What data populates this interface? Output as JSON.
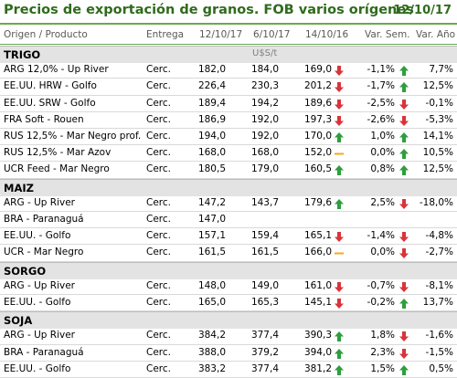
{
  "title": "Precios de exportación de granos. FOB varios orígenes",
  "date": "12/10/17",
  "columns": {
    "product": "Origen / Producto",
    "delivery": "Entrega",
    "d1": "12/10/17",
    "d2": "6/10/17",
    "d3": "14/10/16",
    "var_week": "Var. Sem.",
    "var_year": "Var. Año"
  },
  "units": "U$S/t",
  "colors": {
    "title": "#2f6b1c",
    "up": "#2e9e3e",
    "down": "#d9343b",
    "flat": "#f2a91b",
    "section_bg": "#e3e3e3"
  },
  "sections": [
    {
      "name": "TRIGO",
      "rows": [
        {
          "product": "ARG 12,0% - Up River",
          "delivery": "Cerc.",
          "d1": "182,0",
          "d2": "184,0",
          "d3": "169,0",
          "d3_icon": "down",
          "var_week": "-1,1%",
          "week_icon": "up",
          "var_year": "7,7%"
        },
        {
          "product": "EE.UU. HRW - Golfo",
          "delivery": "Cerc.",
          "d1": "226,4",
          "d2": "230,3",
          "d3": "201,2",
          "d3_icon": "down",
          "var_week": "-1,7%",
          "week_icon": "up",
          "var_year": "12,5%"
        },
        {
          "product": "EE.UU. SRW - Golfo",
          "delivery": "Cerc.",
          "d1": "189,4",
          "d2": "194,2",
          "d3": "189,6",
          "d3_icon": "down",
          "var_week": "-2,5%",
          "week_icon": "down",
          "var_year": "-0,1%"
        },
        {
          "product": "FRA Soft - Rouen",
          "delivery": "Cerc.",
          "d1": "186,9",
          "d2": "192,0",
          "d3": "197,3",
          "d3_icon": "down",
          "var_week": "-2,6%",
          "week_icon": "down",
          "var_year": "-5,3%"
        },
        {
          "product": "RUS 12,5% - Mar Negro prof.",
          "delivery": "Cerc.",
          "d1": "194,0",
          "d2": "192,0",
          "d3": "170,0",
          "d3_icon": "up",
          "var_week": "1,0%",
          "week_icon": "up",
          "var_year": "14,1%"
        },
        {
          "product": "RUS 12,5% - Mar Azov",
          "delivery": "Cerc.",
          "d1": "168,0",
          "d2": "168,0",
          "d3": "152,0",
          "d3_icon": "flat",
          "var_week": "0,0%",
          "week_icon": "up",
          "var_year": "10,5%"
        },
        {
          "product": "UCR Feed - Mar Negro",
          "delivery": "Cerc.",
          "d1": "180,5",
          "d2": "179,0",
          "d3": "160,5",
          "d3_icon": "up",
          "var_week": "0,8%",
          "week_icon": "up",
          "var_year": "12,5%"
        }
      ]
    },
    {
      "name": "MAIZ",
      "rows": [
        {
          "product": "ARG - Up River",
          "delivery": "Cerc.",
          "d1": "147,2",
          "d2": "143,7",
          "d3": "179,6",
          "d3_icon": "up",
          "var_week": "2,5%",
          "week_icon": "down",
          "var_year": "-18,0%"
        },
        {
          "product": "BRA - Paranaguá",
          "delivery": "Cerc.",
          "d1": "147,0",
          "d2": "",
          "d3": "",
          "d3_icon": "",
          "var_week": "",
          "week_icon": "",
          "var_year": ""
        },
        {
          "product": "EE.UU. - Golfo",
          "delivery": "Cerc.",
          "d1": "157,1",
          "d2": "159,4",
          "d3": "165,1",
          "d3_icon": "down",
          "var_week": "-1,4%",
          "week_icon": "down",
          "var_year": "-4,8%"
        },
        {
          "product": "UCR - Mar Negro",
          "delivery": "Cerc.",
          "d1": "161,5",
          "d2": "161,5",
          "d3": "166,0",
          "d3_icon": "flat",
          "var_week": "0,0%",
          "week_icon": "down",
          "var_year": "-2,7%"
        }
      ]
    },
    {
      "name": "SORGO",
      "rows": [
        {
          "product": "ARG - Up River",
          "delivery": "Cerc.",
          "d1": "148,0",
          "d2": "149,0",
          "d3": "161,0",
          "d3_icon": "down",
          "var_week": "-0,7%",
          "week_icon": "down",
          "var_year": "-8,1%"
        },
        {
          "product": "EE.UU. - Golfo",
          "delivery": "Cerc.",
          "d1": "165,0",
          "d2": "165,3",
          "d3": "145,1",
          "d3_icon": "down",
          "var_week": "-0,2%",
          "week_icon": "up",
          "var_year": "13,7%"
        }
      ]
    },
    {
      "name": "SOJA",
      "rows": [
        {
          "product": "ARG - Up River",
          "delivery": "Cerc.",
          "d1": "384,2",
          "d2": "377,4",
          "d3": "390,3",
          "d3_icon": "up",
          "var_week": "1,8%",
          "week_icon": "down",
          "var_year": "-1,6%"
        },
        {
          "product": "BRA - Paranaguá",
          "delivery": "Cerc.",
          "d1": "388,0",
          "d2": "379,2",
          "d3": "394,0",
          "d3_icon": "up",
          "var_week": "2,3%",
          "week_icon": "down",
          "var_year": "-1,5%"
        },
        {
          "product": "EE.UU. - Golfo",
          "delivery": "Cerc.",
          "d1": "383,2",
          "d2": "377,4",
          "d3": "381,2",
          "d3_icon": "up",
          "var_week": "1,5%",
          "week_icon": "up",
          "var_year": "0,5%"
        }
      ]
    }
  ]
}
